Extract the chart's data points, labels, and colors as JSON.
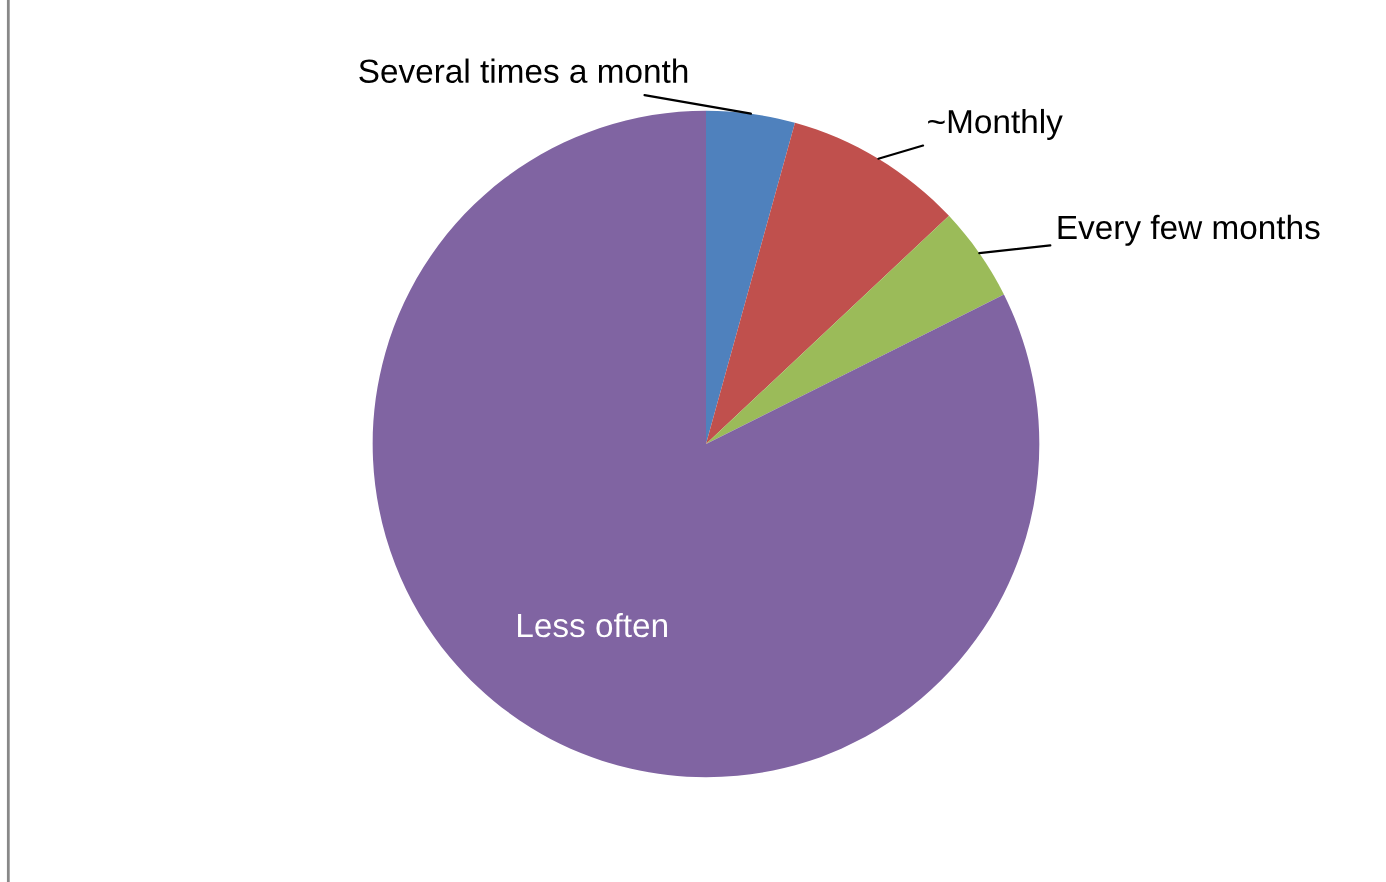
{
  "chart_data": {
    "type": "pie",
    "categories": [
      "Several times a month",
      "~Monthly",
      "Every few months",
      "Less often"
    ],
    "values": [
      4.3,
      8.7,
      4.6,
      82.4
    ],
    "colors": [
      "#4f81bd",
      "#c0504d",
      "#9bbb59",
      "#8064a2"
    ],
    "legend": false
  }
}
